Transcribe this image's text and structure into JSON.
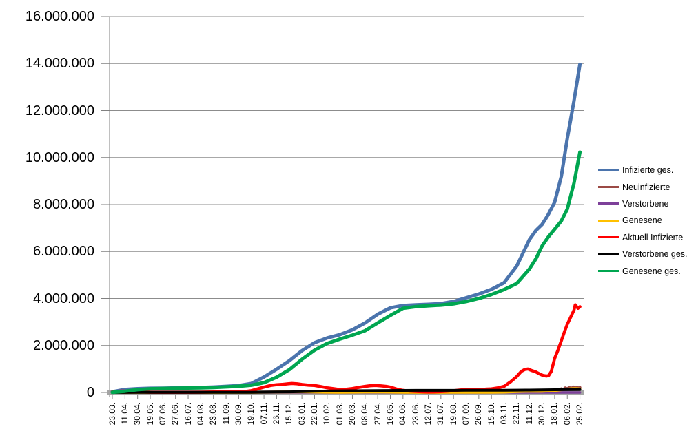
{
  "chart_data": {
    "type": "line",
    "title": "",
    "value_unit": "million persons",
    "grid": true,
    "legend_position": "right",
    "y_axis": {
      "min": 0,
      "max": 16000000,
      "tick_interval": 2000000,
      "tick_labels": [
        "16.000.000",
        "14.000.000",
        "12.000.000",
        "10.000.000",
        "8.000.000",
        "6.000.000",
        "4.000.000",
        "2.000.000",
        "0"
      ]
    },
    "x_axis": {
      "days_per_tick": 19,
      "tick_labels": [
        "23.03.",
        "11.04.",
        "30.04.",
        "19.05.",
        "07.06.",
        "27.06.",
        "16.07.",
        "04.08.",
        "23.08.",
        "11.09.",
        "30.09.",
        "19.10.",
        "07.11.",
        "26.11.",
        "15.12.",
        "03.01.",
        "22.01.",
        "10.02.",
        "01.03.",
        "20.03.",
        "08.04.",
        "27.04.",
        "16.05.",
        "04.06.",
        "23.06.",
        "12.07.",
        "31.07.",
        "19.08.",
        "07.09.",
        "26.09.",
        "15.10.",
        "03.11.",
        "22.11.",
        "11.12.",
        "30.12.",
        "18.01.",
        "06.02.",
        "25.02."
      ]
    },
    "colors": {
      "gridline": "#8C8C8C",
      "axis": "#808080",
      "axis_bar": "#A5A5A5",
      "background": "#FFFFFF"
    },
    "series": [
      {
        "name": "Infizierte ges.",
        "color": "#4B74AD",
        "width": 5,
        "points_day_millions": [
          [
            0,
            0.03
          ],
          [
            19,
            0.13
          ],
          [
            38,
            0.16
          ],
          [
            57,
            0.178
          ],
          [
            76,
            0.186
          ],
          [
            95,
            0.194
          ],
          [
            114,
            0.202
          ],
          [
            133,
            0.212
          ],
          [
            152,
            0.232
          ],
          [
            171,
            0.26
          ],
          [
            190,
            0.292
          ],
          [
            209,
            0.38
          ],
          [
            228,
            0.66
          ],
          [
            247,
            0.99
          ],
          [
            266,
            1.35
          ],
          [
            285,
            1.78
          ],
          [
            304,
            2.12
          ],
          [
            323,
            2.32
          ],
          [
            342,
            2.46
          ],
          [
            361,
            2.67
          ],
          [
            380,
            2.96
          ],
          [
            399,
            3.33
          ],
          [
            418,
            3.6
          ],
          [
            437,
            3.7
          ],
          [
            456,
            3.73
          ],
          [
            475,
            3.75
          ],
          [
            494,
            3.78
          ],
          [
            513,
            3.87
          ],
          [
            532,
            4.03
          ],
          [
            551,
            4.19
          ],
          [
            570,
            4.39
          ],
          [
            589,
            4.67
          ],
          [
            608,
            5.38
          ],
          [
            627,
            6.5
          ],
          [
            637,
            6.9
          ],
          [
            646,
            7.15
          ],
          [
            655,
            7.55
          ],
          [
            665,
            8.1
          ],
          [
            675,
            9.2
          ],
          [
            684,
            10.8
          ],
          [
            694,
            12.4
          ],
          [
            703,
            13.97
          ]
        ]
      },
      {
        "name": "Neuinfizierte",
        "color": "#9B4A45",
        "width": 4,
        "points_day_millions": [
          [
            0,
            0.004
          ],
          [
            19,
            0.006
          ],
          [
            38,
            0.002
          ],
          [
            76,
            0.001
          ],
          [
            133,
            0.001
          ],
          [
            171,
            0.002
          ],
          [
            190,
            0.002
          ],
          [
            209,
            0.005
          ],
          [
            228,
            0.018
          ],
          [
            247,
            0.02
          ],
          [
            266,
            0.027
          ],
          [
            285,
            0.022
          ],
          [
            304,
            0.014
          ],
          [
            323,
            0.01
          ],
          [
            342,
            0.008
          ],
          [
            361,
            0.012
          ],
          [
            380,
            0.017
          ],
          [
            399,
            0.024
          ],
          [
            418,
            0.011
          ],
          [
            437,
            0.004
          ],
          [
            456,
            0.001
          ],
          [
            475,
            0.002
          ],
          [
            494,
            0.003
          ],
          [
            513,
            0.009
          ],
          [
            532,
            0.011
          ],
          [
            551,
            0.008
          ],
          [
            570,
            0.011
          ],
          [
            589,
            0.025
          ],
          [
            608,
            0.05
          ],
          [
            618,
            0.06
          ],
          [
            627,
            0.055
          ],
          [
            637,
            0.042
          ],
          [
            646,
            0.04
          ],
          [
            655,
            0.06
          ],
          [
            665,
            0.09
          ],
          [
            669,
            0.13
          ],
          [
            672,
            0.1
          ],
          [
            675,
            0.16
          ],
          [
            678,
            0.13
          ],
          [
            681,
            0.2
          ],
          [
            684,
            0.16
          ],
          [
            687,
            0.22
          ],
          [
            690,
            0.17
          ],
          [
            693,
            0.24
          ],
          [
            696,
            0.19
          ],
          [
            699,
            0.23
          ],
          [
            701,
            0.19
          ],
          [
            703,
            0.22
          ]
        ]
      },
      {
        "name": "Verstorbene",
        "color": "#7D4099",
        "width": 3.5,
        "points_day_millions": [
          [
            0,
            0.0002
          ],
          [
            266,
            0.0009
          ],
          [
            304,
            0.001
          ],
          [
            342,
            0.0004
          ],
          [
            418,
            0.0002
          ],
          [
            513,
            0.0001
          ],
          [
            589,
            0.0003
          ],
          [
            627,
            0.0005
          ],
          [
            665,
            0.0002
          ],
          [
            703,
            0.0003
          ]
        ]
      },
      {
        "name": "Genesene",
        "color": "#FFC000",
        "width": 4,
        "points_day_millions": [
          [
            0,
            0.001
          ],
          [
            19,
            0.004
          ],
          [
            38,
            0.004
          ],
          [
            57,
            0.002
          ],
          [
            95,
            0.001
          ],
          [
            152,
            0.001
          ],
          [
            190,
            0.002
          ],
          [
            209,
            0.004
          ],
          [
            228,
            0.012
          ],
          [
            247,
            0.018
          ],
          [
            266,
            0.024
          ],
          [
            285,
            0.027
          ],
          [
            304,
            0.019
          ],
          [
            323,
            0.013
          ],
          [
            342,
            0.01
          ],
          [
            361,
            0.013
          ],
          [
            380,
            0.018
          ],
          [
            399,
            0.022
          ],
          [
            418,
            0.015
          ],
          [
            437,
            0.006
          ],
          [
            475,
            0.002
          ],
          [
            513,
            0.007
          ],
          [
            532,
            0.009
          ],
          [
            551,
            0.008
          ],
          [
            570,
            0.009
          ],
          [
            589,
            0.016
          ],
          [
            608,
            0.038
          ],
          [
            627,
            0.052
          ],
          [
            646,
            0.048
          ],
          [
            665,
            0.08
          ],
          [
            675,
            0.11
          ],
          [
            684,
            0.14
          ],
          [
            690,
            0.16
          ],
          [
            696,
            0.17
          ],
          [
            700,
            0.16
          ],
          [
            703,
            0.15
          ]
        ]
      },
      {
        "name": "Aktuell Infizierte",
        "color": "#FF0000",
        "width": 4.5,
        "points_day_millions": [
          [
            0,
            0.022
          ],
          [
            8,
            0.05
          ],
          [
            14,
            0.06
          ],
          [
            19,
            0.058
          ],
          [
            28,
            0.044
          ],
          [
            38,
            0.032
          ],
          [
            48,
            0.02
          ],
          [
            57,
            0.013
          ],
          [
            76,
            0.008
          ],
          [
            95,
            0.007
          ],
          [
            114,
            0.01
          ],
          [
            133,
            0.013
          ],
          [
            152,
            0.02
          ],
          [
            171,
            0.022
          ],
          [
            190,
            0.025
          ],
          [
            200,
            0.045
          ],
          [
            209,
            0.08
          ],
          [
            218,
            0.15
          ],
          [
            228,
            0.23
          ],
          [
            238,
            0.3
          ],
          [
            247,
            0.33
          ],
          [
            257,
            0.35
          ],
          [
            264,
            0.37
          ],
          [
            270,
            0.385
          ],
          [
            278,
            0.37
          ],
          [
            285,
            0.34
          ],
          [
            295,
            0.31
          ],
          [
            304,
            0.3
          ],
          [
            314,
            0.25
          ],
          [
            323,
            0.2
          ],
          [
            333,
            0.16
          ],
          [
            342,
            0.125
          ],
          [
            352,
            0.14
          ],
          [
            361,
            0.17
          ],
          [
            371,
            0.22
          ],
          [
            380,
            0.26
          ],
          [
            388,
            0.29
          ],
          [
            396,
            0.3
          ],
          [
            404,
            0.28
          ],
          [
            412,
            0.26
          ],
          [
            418,
            0.23
          ],
          [
            428,
            0.14
          ],
          [
            437,
            0.09
          ],
          [
            447,
            0.06
          ],
          [
            456,
            0.045
          ],
          [
            466,
            0.028
          ],
          [
            475,
            0.021
          ],
          [
            485,
            0.025
          ],
          [
            494,
            0.035
          ],
          [
            504,
            0.055
          ],
          [
            513,
            0.075
          ],
          [
            523,
            0.105
          ],
          [
            532,
            0.125
          ],
          [
            542,
            0.135
          ],
          [
            551,
            0.14
          ],
          [
            561,
            0.145
          ],
          [
            570,
            0.155
          ],
          [
            580,
            0.2
          ],
          [
            589,
            0.26
          ],
          [
            599,
            0.46
          ],
          [
            608,
            0.68
          ],
          [
            615,
            0.9
          ],
          [
            620,
            0.98
          ],
          [
            625,
            1.0
          ],
          [
            631,
            0.93
          ],
          [
            637,
            0.87
          ],
          [
            643,
            0.78
          ],
          [
            648,
            0.72
          ],
          [
            653,
            0.7
          ],
          [
            656,
            0.72
          ],
          [
            660,
            0.9
          ],
          [
            665,
            1.45
          ],
          [
            670,
            1.8
          ],
          [
            675,
            2.2
          ],
          [
            680,
            2.6
          ],
          [
            684,
            2.9
          ],
          [
            689,
            3.2
          ],
          [
            694,
            3.5
          ],
          [
            696,
            3.73
          ],
          [
            700,
            3.58
          ],
          [
            703,
            3.65
          ]
        ]
      },
      {
        "name": "Verstorbene ges.",
        "color": "#000000",
        "width": 4,
        "points_day_millions": [
          [
            0,
            0.0
          ],
          [
            19,
            0.002
          ],
          [
            38,
            0.006
          ],
          [
            57,
            0.008
          ],
          [
            95,
            0.009
          ],
          [
            133,
            0.0092
          ],
          [
            171,
            0.0094
          ],
          [
            190,
            0.0096
          ],
          [
            209,
            0.01
          ],
          [
            228,
            0.014
          ],
          [
            247,
            0.02
          ],
          [
            266,
            0.027
          ],
          [
            285,
            0.035
          ],
          [
            304,
            0.051
          ],
          [
            323,
            0.062
          ],
          [
            342,
            0.07
          ],
          [
            361,
            0.074
          ],
          [
            380,
            0.077
          ],
          [
            399,
            0.082
          ],
          [
            418,
            0.086
          ],
          [
            437,
            0.089
          ],
          [
            456,
            0.0905
          ],
          [
            475,
            0.0912
          ],
          [
            494,
            0.0916
          ],
          [
            513,
            0.092
          ],
          [
            532,
            0.0925
          ],
          [
            551,
            0.0932
          ],
          [
            570,
            0.0945
          ],
          [
            589,
            0.0962
          ],
          [
            608,
            0.1
          ],
          [
            627,
            0.104
          ],
          [
            646,
            0.111
          ],
          [
            665,
            0.116
          ],
          [
            684,
            0.119
          ],
          [
            703,
            0.122
          ]
        ]
      },
      {
        "name": "Genesene ges.",
        "color": "#00A650",
        "width": 5,
        "points_day_millions": [
          [
            0,
            0.006
          ],
          [
            19,
            0.052
          ],
          [
            38,
            0.12
          ],
          [
            57,
            0.158
          ],
          [
            76,
            0.172
          ],
          [
            95,
            0.181
          ],
          [
            114,
            0.19
          ],
          [
            133,
            0.198
          ],
          [
            152,
            0.21
          ],
          [
            171,
            0.236
          ],
          [
            190,
            0.265
          ],
          [
            209,
            0.31
          ],
          [
            228,
            0.42
          ],
          [
            247,
            0.65
          ],
          [
            266,
            0.97
          ],
          [
            285,
            1.41
          ],
          [
            304,
            1.8
          ],
          [
            323,
            2.09
          ],
          [
            342,
            2.27
          ],
          [
            361,
            2.44
          ],
          [
            380,
            2.63
          ],
          [
            399,
            2.96
          ],
          [
            418,
            3.28
          ],
          [
            437,
            3.58
          ],
          [
            456,
            3.65
          ],
          [
            475,
            3.69
          ],
          [
            494,
            3.72
          ],
          [
            513,
            3.77
          ],
          [
            532,
            3.87
          ],
          [
            551,
            4.0
          ],
          [
            570,
            4.17
          ],
          [
            589,
            4.38
          ],
          [
            608,
            4.64
          ],
          [
            627,
            5.25
          ],
          [
            637,
            5.7
          ],
          [
            646,
            6.23
          ],
          [
            655,
            6.6
          ],
          [
            665,
            6.95
          ],
          [
            675,
            7.3
          ],
          [
            684,
            7.8
          ],
          [
            694,
            8.9
          ],
          [
            703,
            10.23
          ]
        ]
      }
    ]
  }
}
